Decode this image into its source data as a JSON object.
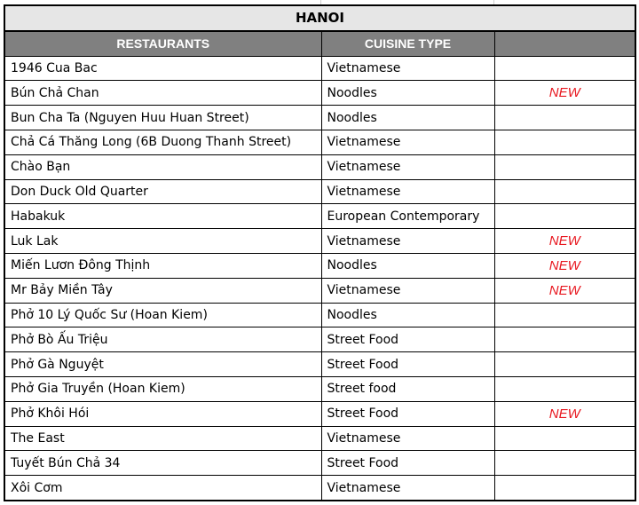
{
  "title": "HANOI",
  "columns": [
    "RESTAURANTS",
    "CUISINE TYPE",
    ""
  ],
  "accent_new_color": "#e8161e",
  "rows": [
    {
      "name": "1946 Cua Bac",
      "cuisine": "Vietnamese",
      "badge": ""
    },
    {
      "name": "Bún Chả Chan",
      "cuisine": "Noodles",
      "badge": "NEW"
    },
    {
      "name": "Bun Cha Ta (Nguyen Huu Huan Street)",
      "cuisine": "Noodles",
      "badge": ""
    },
    {
      "name": "Chả Cá Thăng Long (6B Duong Thanh Street)",
      "cuisine": "Vietnamese",
      "badge": ""
    },
    {
      "name": "Chào Bạn",
      "cuisine": "Vietnamese",
      "badge": ""
    },
    {
      "name": "Don Duck Old Quarter",
      "cuisine": "Vietnamese",
      "badge": ""
    },
    {
      "name": "Habakuk",
      "cuisine": "European Contemporary",
      "badge": ""
    },
    {
      "name": "Luk Lak",
      "cuisine": "Vietnamese",
      "badge": "NEW"
    },
    {
      "name": "Miến Lươn Đông Thịnh",
      "cuisine": "Noodles",
      "badge": "NEW"
    },
    {
      "name": "Mr Bảy Miền Tây",
      "cuisine": "Vietnamese",
      "badge": "NEW"
    },
    {
      "name": "Phở 10 Lý Quốc Sư (Hoan Kiem)",
      "cuisine": "Noodles",
      "badge": ""
    },
    {
      "name": "Phở Bò Ấu Triệu",
      "cuisine": "Street Food",
      "badge": ""
    },
    {
      "name": "Phở Gà Nguyệt",
      "cuisine": "Street Food",
      "badge": ""
    },
    {
      "name": "Phở Gia Truyền (Hoan Kiem)",
      "cuisine": "Street food",
      "badge": ""
    },
    {
      "name": "Phở Khôi Hói",
      "cuisine": "Street Food",
      "badge": "NEW"
    },
    {
      "name": "The East",
      "cuisine": "Vietnamese",
      "badge": ""
    },
    {
      "name": "Tuyết Bún Chả 34",
      "cuisine": "Street Food",
      "badge": ""
    },
    {
      "name": "Xôi Cơm",
      "cuisine": "Vietnamese",
      "badge": ""
    }
  ]
}
